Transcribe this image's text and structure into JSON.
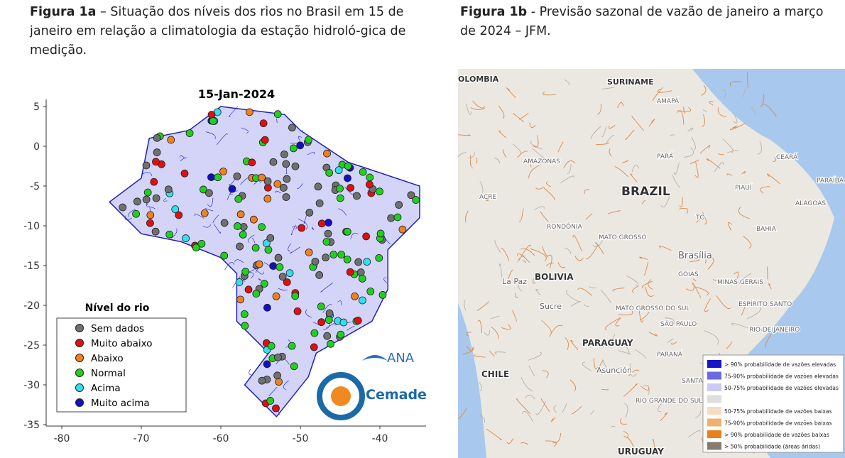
{
  "figure_a": {
    "caption": {
      "label": "Figura 1a",
      "text": "– Situação dos níveis dos rios no Brasil em 15 de janeiro em relação a climatologia da estação hidroló-gica de medição."
    },
    "map_title": "15-Jan-2024",
    "yticks": [
      5,
      0,
      -5,
      -10,
      -15,
      -20,
      -25,
      -30,
      -35
    ],
    "xticks": [
      -80,
      -70,
      -60,
      -50,
      -40
    ],
    "legend": {
      "title": "Nível do rio",
      "items": [
        {
          "label": "Sem dados",
          "color": "#707070"
        },
        {
          "label": "Muito abaixo",
          "color": "#e01010"
        },
        {
          "label": "Abaixo",
          "color": "#f08020"
        },
        {
          "label": "Normal",
          "color": "#20d020"
        },
        {
          "label": "Acima",
          "color": "#30e0f0"
        },
        {
          "label": "Muito acima",
          "color": "#1010c0"
        }
      ]
    },
    "logos": [
      "ANA",
      "Cemaden"
    ]
  },
  "figure_b": {
    "caption": {
      "label": "Figura 1b",
      "text": "- Previsão sazonal de vazão de janeiro a março de 2024 – JFM."
    },
    "map_labels": [
      "OLOMBIA",
      "SURINAME",
      "AMAPÁ",
      "AMAZONAS",
      "PARÁ",
      "CEARÁ",
      "PARAÍBA",
      "ALAGOAS",
      "ACRE",
      "BRAZIL",
      "PIAUÍ",
      "TO",
      "BAHIA",
      "RONDÔNIA",
      "MATO GROSSO",
      "Brasília",
      "BOLIVIA",
      "La Paz",
      "GOIÁS",
      "MINAS GERAIS",
      "Sucre",
      "MATO GROSSO DO SUL",
      "SÃO PAULO",
      "ESPÍRITO SANTO",
      "RIO DE JANEIRO",
      "PARAGUAY",
      "PARANÁ",
      "Asunción",
      "CHILE",
      "SANTA CATA",
      "RIO GRANDE DO SUL",
      "URUGUAY"
    ],
    "legend": [
      {
        "label": "> 90% probabilidade de vazões elevadas",
        "color": "#1414c8"
      },
      {
        "label": "75-90% probabilidade de vazões elevadas",
        "color": "#6a6ae0"
      },
      {
        "label": "50-75% probabilidade de vazões elevadas",
        "color": "#cacaf2"
      },
      {
        "color": "#dedede"
      },
      {
        "label": "50-75% probabilidade de vazões baixas",
        "color": "#f7dcc0"
      },
      {
        "label": "75-90% probabilidade de vazões baixas",
        "color": "#f0b070"
      },
      {
        "label": "> 90% probabilidade de vazões baixas",
        "color": "#e88020"
      },
      {
        "label": "> 50% probabilidade (áreas áridas)",
        "color": "#857b6e"
      }
    ]
  }
}
